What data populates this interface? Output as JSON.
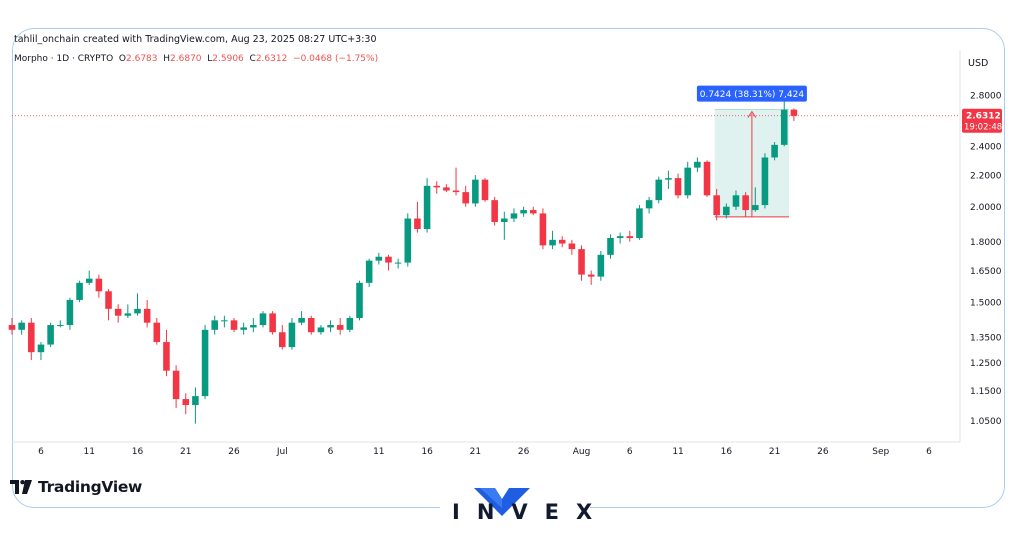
{
  "header": {
    "byline": "tahlil_onchain created with TradingView.com, Aug 23, 2025 08:27 UTC+3:30",
    "symbol": "Morpho · 1D · CRYPTO",
    "open_label": "O",
    "open": "2.6783",
    "high_label": "H",
    "high": "2.6870",
    "low_label": "L",
    "low": "2.5906",
    "close_label": "C",
    "close": "2.6312",
    "change": "−0.0468 (−1.75%)"
  },
  "colors": {
    "up": "#089981",
    "down": "#f23645",
    "accent": "#2962ff",
    "frame": "#a9cdf1"
  },
  "chart_data": {
    "type": "candlestick",
    "y_scale": "log",
    "currency_label": "USD",
    "y_ticks": [
      "2.8000",
      "2.4000",
      "2.2000",
      "2.0000",
      "1.8000",
      "1.6500",
      "1.5000",
      "1.3500",
      "1.2500",
      "1.1500",
      "1.0500"
    ],
    "y_tick_values": [
      2.8,
      2.4,
      2.2,
      2.0,
      1.8,
      1.65,
      1.5,
      1.35,
      1.25,
      1.15,
      1.05
    ],
    "x_ticks": [
      {
        "label": "6",
        "date": "2025-06-06"
      },
      {
        "label": "11",
        "date": "2025-06-11"
      },
      {
        "label": "16",
        "date": "2025-06-16"
      },
      {
        "label": "21",
        "date": "2025-06-21"
      },
      {
        "label": "26",
        "date": "2025-06-26"
      },
      {
        "label": "Jul",
        "date": "2025-07-01"
      },
      {
        "label": "6",
        "date": "2025-07-06"
      },
      {
        "label": "11",
        "date": "2025-07-11"
      },
      {
        "label": "16",
        "date": "2025-07-16"
      },
      {
        "label": "21",
        "date": "2025-07-21"
      },
      {
        "label": "26",
        "date": "2025-07-26"
      },
      {
        "label": "Aug",
        "date": "2025-08-01"
      },
      {
        "label": "6",
        "date": "2025-08-06"
      },
      {
        "label": "11",
        "date": "2025-08-11"
      },
      {
        "label": "16",
        "date": "2025-08-16"
      },
      {
        "label": "21",
        "date": "2025-08-21"
      },
      {
        "label": "26",
        "date": "2025-08-26"
      },
      {
        "label": "Sep",
        "date": "2025-09-01"
      },
      {
        "label": "6",
        "date": "2025-09-06"
      }
    ],
    "x_range": [
      "2025-06-03",
      "2025-09-09"
    ],
    "y_range": [
      0.99,
      3.02
    ],
    "last_price_label": "2.6312",
    "countdown_label": "19:02:48",
    "measure_label": "0.7424 (38.31%) 7,424",
    "measure_range": {
      "from_date": "2025-08-15",
      "to_date": "2025-08-22",
      "low": 1.94,
      "high": 2.68
    },
    "candles": [
      {
        "date": "2025-06-03",
        "open": 1.4,
        "high": 1.43,
        "low": 1.36,
        "close": 1.38
      },
      {
        "date": "2025-06-04",
        "open": 1.38,
        "high": 1.42,
        "low": 1.36,
        "close": 1.41
      },
      {
        "date": "2025-06-05",
        "open": 1.41,
        "high": 1.43,
        "low": 1.26,
        "close": 1.29
      },
      {
        "date": "2025-06-06",
        "open": 1.29,
        "high": 1.33,
        "low": 1.26,
        "close": 1.32
      },
      {
        "date": "2025-06-07",
        "open": 1.32,
        "high": 1.41,
        "low": 1.31,
        "close": 1.4
      },
      {
        "date": "2025-06-08",
        "open": 1.4,
        "high": 1.42,
        "low": 1.39,
        "close": 1.4
      },
      {
        "date": "2025-06-09",
        "open": 1.4,
        "high": 1.52,
        "low": 1.38,
        "close": 1.51
      },
      {
        "date": "2025-06-10",
        "open": 1.51,
        "high": 1.6,
        "low": 1.5,
        "close": 1.59
      },
      {
        "date": "2025-06-11",
        "open": 1.59,
        "high": 1.65,
        "low": 1.58,
        "close": 1.61
      },
      {
        "date": "2025-06-12",
        "open": 1.61,
        "high": 1.63,
        "low": 1.52,
        "close": 1.55
      },
      {
        "date": "2025-06-13",
        "open": 1.55,
        "high": 1.56,
        "low": 1.42,
        "close": 1.47
      },
      {
        "date": "2025-06-14",
        "open": 1.47,
        "high": 1.49,
        "low": 1.41,
        "close": 1.44
      },
      {
        "date": "2025-06-15",
        "open": 1.44,
        "high": 1.49,
        "low": 1.43,
        "close": 1.45
      },
      {
        "date": "2025-06-16",
        "open": 1.45,
        "high": 1.54,
        "low": 1.44,
        "close": 1.47
      },
      {
        "date": "2025-06-17",
        "open": 1.47,
        "high": 1.51,
        "low": 1.39,
        "close": 1.41
      },
      {
        "date": "2025-06-18",
        "open": 1.41,
        "high": 1.43,
        "low": 1.32,
        "close": 1.33
      },
      {
        "date": "2025-06-19",
        "open": 1.33,
        "high": 1.38,
        "low": 1.2,
        "close": 1.22
      },
      {
        "date": "2025-06-20",
        "open": 1.22,
        "high": 1.24,
        "low": 1.09,
        "close": 1.12
      },
      {
        "date": "2025-06-21",
        "open": 1.12,
        "high": 1.14,
        "low": 1.07,
        "close": 1.1
      },
      {
        "date": "2025-06-22",
        "open": 1.1,
        "high": 1.16,
        "low": 1.04,
        "close": 1.13
      },
      {
        "date": "2025-06-23",
        "open": 1.13,
        "high": 1.4,
        "low": 1.12,
        "close": 1.38
      },
      {
        "date": "2025-06-24",
        "open": 1.38,
        "high": 1.44,
        "low": 1.36,
        "close": 1.42
      },
      {
        "date": "2025-06-25",
        "open": 1.42,
        "high": 1.44,
        "low": 1.39,
        "close": 1.42
      },
      {
        "date": "2025-06-26",
        "open": 1.42,
        "high": 1.43,
        "low": 1.37,
        "close": 1.38
      },
      {
        "date": "2025-06-27",
        "open": 1.38,
        "high": 1.41,
        "low": 1.36,
        "close": 1.39
      },
      {
        "date": "2025-06-28",
        "open": 1.39,
        "high": 1.43,
        "low": 1.37,
        "close": 1.4
      },
      {
        "date": "2025-06-29",
        "open": 1.4,
        "high": 1.46,
        "low": 1.39,
        "close": 1.45
      },
      {
        "date": "2025-06-30",
        "open": 1.45,
        "high": 1.46,
        "low": 1.36,
        "close": 1.37
      },
      {
        "date": "2025-07-01",
        "open": 1.37,
        "high": 1.4,
        "low": 1.3,
        "close": 1.31
      },
      {
        "date": "2025-07-02",
        "open": 1.31,
        "high": 1.43,
        "low": 1.3,
        "close": 1.41
      },
      {
        "date": "2025-07-03",
        "open": 1.41,
        "high": 1.46,
        "low": 1.4,
        "close": 1.43
      },
      {
        "date": "2025-07-04",
        "open": 1.43,
        "high": 1.44,
        "low": 1.36,
        "close": 1.37
      },
      {
        "date": "2025-07-05",
        "open": 1.37,
        "high": 1.4,
        "low": 1.36,
        "close": 1.39
      },
      {
        "date": "2025-07-06",
        "open": 1.39,
        "high": 1.42,
        "low": 1.37,
        "close": 1.4
      },
      {
        "date": "2025-07-07",
        "open": 1.4,
        "high": 1.43,
        "low": 1.36,
        "close": 1.38
      },
      {
        "date": "2025-07-08",
        "open": 1.38,
        "high": 1.44,
        "low": 1.37,
        "close": 1.43
      },
      {
        "date": "2025-07-09",
        "open": 1.43,
        "high": 1.6,
        "low": 1.42,
        "close": 1.59
      },
      {
        "date": "2025-07-10",
        "open": 1.59,
        "high": 1.71,
        "low": 1.57,
        "close": 1.7
      },
      {
        "date": "2025-07-11",
        "open": 1.7,
        "high": 1.74,
        "low": 1.68,
        "close": 1.72
      },
      {
        "date": "2025-07-12",
        "open": 1.72,
        "high": 1.73,
        "low": 1.65,
        "close": 1.69
      },
      {
        "date": "2025-07-13",
        "open": 1.69,
        "high": 1.71,
        "low": 1.66,
        "close": 1.69
      },
      {
        "date": "2025-07-14",
        "open": 1.69,
        "high": 1.96,
        "low": 1.67,
        "close": 1.93
      },
      {
        "date": "2025-07-15",
        "open": 1.93,
        "high": 2.03,
        "low": 1.85,
        "close": 1.87
      },
      {
        "date": "2025-07-16",
        "open": 1.87,
        "high": 2.18,
        "low": 1.85,
        "close": 2.13
      },
      {
        "date": "2025-07-17",
        "open": 2.13,
        "high": 2.16,
        "low": 2.08,
        "close": 2.12
      },
      {
        "date": "2025-07-18",
        "open": 2.12,
        "high": 2.14,
        "low": 2.09,
        "close": 2.1
      },
      {
        "date": "2025-07-19",
        "open": 2.1,
        "high": 2.25,
        "low": 2.07,
        "close": 2.09
      },
      {
        "date": "2025-07-20",
        "open": 2.09,
        "high": 2.13,
        "low": 2.0,
        "close": 2.02
      },
      {
        "date": "2025-07-21",
        "open": 2.02,
        "high": 2.2,
        "low": 2.0,
        "close": 2.17
      },
      {
        "date": "2025-07-22",
        "open": 2.17,
        "high": 2.18,
        "low": 2.03,
        "close": 2.04
      },
      {
        "date": "2025-07-23",
        "open": 2.04,
        "high": 2.06,
        "low": 1.89,
        "close": 1.91
      },
      {
        "date": "2025-07-24",
        "open": 1.91,
        "high": 1.97,
        "low": 1.81,
        "close": 1.93
      },
      {
        "date": "2025-07-25",
        "open": 1.93,
        "high": 1.99,
        "low": 1.91,
        "close": 1.96
      },
      {
        "date": "2025-07-26",
        "open": 1.96,
        "high": 2.0,
        "low": 1.94,
        "close": 1.98
      },
      {
        "date": "2025-07-27",
        "open": 1.98,
        "high": 2.0,
        "low": 1.95,
        "close": 1.96
      },
      {
        "date": "2025-07-28",
        "open": 1.96,
        "high": 1.99,
        "low": 1.76,
        "close": 1.78
      },
      {
        "date": "2025-07-29",
        "open": 1.78,
        "high": 1.86,
        "low": 1.76,
        "close": 1.81
      },
      {
        "date": "2025-07-30",
        "open": 1.81,
        "high": 1.83,
        "low": 1.77,
        "close": 1.79
      },
      {
        "date": "2025-07-31",
        "open": 1.79,
        "high": 1.81,
        "low": 1.73,
        "close": 1.76
      },
      {
        "date": "2025-08-01",
        "open": 1.76,
        "high": 1.78,
        "low": 1.6,
        "close": 1.63
      },
      {
        "date": "2025-08-02",
        "open": 1.63,
        "high": 1.65,
        "low": 1.58,
        "close": 1.62
      },
      {
        "date": "2025-08-03",
        "open": 1.62,
        "high": 1.75,
        "low": 1.6,
        "close": 1.73
      },
      {
        "date": "2025-08-04",
        "open": 1.73,
        "high": 1.84,
        "low": 1.71,
        "close": 1.82
      },
      {
        "date": "2025-08-05",
        "open": 1.82,
        "high": 1.85,
        "low": 1.79,
        "close": 1.83
      },
      {
        "date": "2025-08-06",
        "open": 1.83,
        "high": 1.86,
        "low": 1.8,
        "close": 1.82
      },
      {
        "date": "2025-08-07",
        "open": 1.82,
        "high": 2.01,
        "low": 1.81,
        "close": 1.99
      },
      {
        "date": "2025-08-08",
        "open": 1.99,
        "high": 2.06,
        "low": 1.96,
        "close": 2.04
      },
      {
        "date": "2025-08-09",
        "open": 2.04,
        "high": 2.19,
        "low": 2.02,
        "close": 2.17
      },
      {
        "date": "2025-08-10",
        "open": 2.17,
        "high": 2.23,
        "low": 2.11,
        "close": 2.18
      },
      {
        "date": "2025-08-11",
        "open": 2.18,
        "high": 2.21,
        "low": 2.05,
        "close": 2.07
      },
      {
        "date": "2025-08-12",
        "open": 2.07,
        "high": 2.29,
        "low": 2.05,
        "close": 2.25
      },
      {
        "date": "2025-08-13",
        "open": 2.25,
        "high": 2.32,
        "low": 2.22,
        "close": 2.29
      },
      {
        "date": "2025-08-14",
        "open": 2.29,
        "high": 2.3,
        "low": 2.06,
        "close": 2.07
      },
      {
        "date": "2025-08-15",
        "open": 2.07,
        "high": 2.11,
        "low": 1.92,
        "close": 1.95
      },
      {
        "date": "2025-08-16",
        "open": 1.95,
        "high": 2.02,
        "low": 1.93,
        "close": 2.0
      },
      {
        "date": "2025-08-17",
        "open": 2.0,
        "high": 2.1,
        "low": 1.98,
        "close": 2.07
      },
      {
        "date": "2025-08-18",
        "open": 2.07,
        "high": 2.09,
        "low": 1.94,
        "close": 1.98
      },
      {
        "date": "2025-08-19",
        "open": 1.98,
        "high": 2.12,
        "low": 1.97,
        "close": 2.01
      },
      {
        "date": "2025-08-20",
        "open": 2.01,
        "high": 2.35,
        "low": 1.99,
        "close": 2.32
      },
      {
        "date": "2025-08-21",
        "open": 2.32,
        "high": 2.43,
        "low": 2.3,
        "close": 2.41
      },
      {
        "date": "2025-08-22",
        "open": 2.41,
        "high": 2.76,
        "low": 2.4,
        "close": 2.68
      },
      {
        "date": "2025-08-23",
        "open": 2.68,
        "high": 2.69,
        "low": 2.59,
        "close": 2.63
      }
    ]
  },
  "branding": {
    "tradingview": "TradingView",
    "invex": "INVEX"
  }
}
